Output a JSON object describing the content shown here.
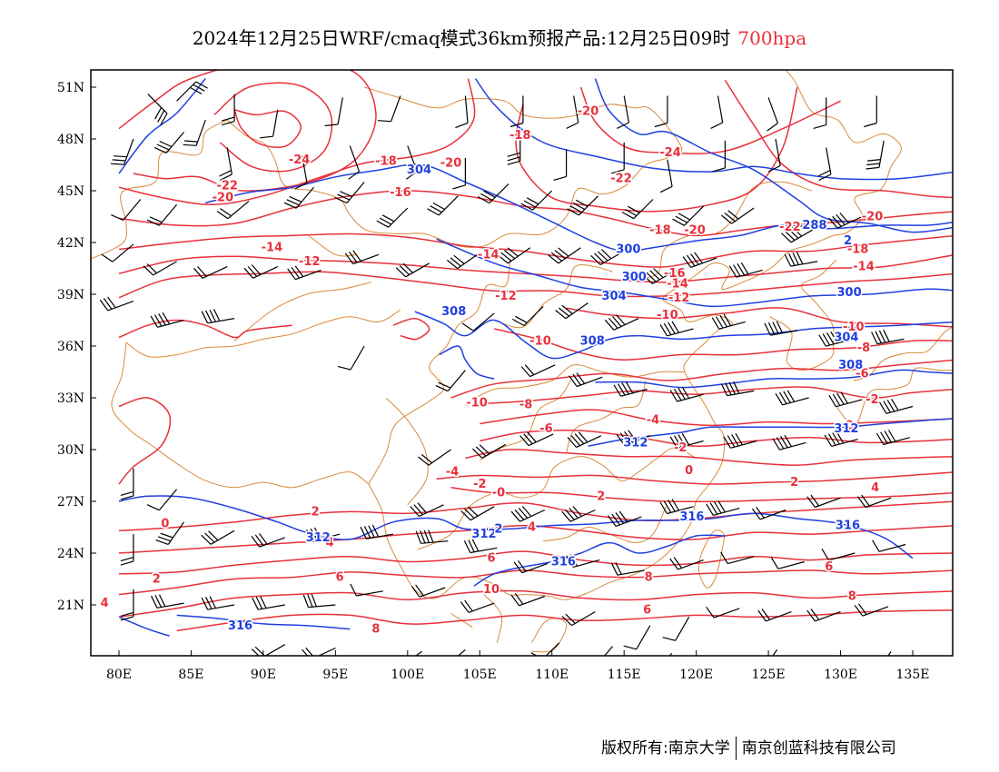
{
  "title": {
    "main": "2024年12月25日WRF/cmaq模式36km预报产品:12月25日09时",
    "level": "700hpa",
    "level_color": "#e8303a"
  },
  "axes": {
    "lon_labels": [
      "80E",
      "85E",
      "90E",
      "95E",
      "100E",
      "105E",
      "110E",
      "115E",
      "120E",
      "125E",
      "130E",
      "135E"
    ],
    "lat_labels": [
      "51N",
      "48N",
      "45N",
      "42N",
      "39N",
      "36N",
      "33N",
      "30N",
      "27N",
      "24N",
      "21N"
    ]
  },
  "colors": {
    "temperature": "#e8303a",
    "height": "#1f3fe0",
    "border": "#d98a3a",
    "wind": "#000000"
  },
  "temperature_labels": [
    {
      "text": "-24",
      "lon": 92.5,
      "lat": 46.8
    },
    {
      "text": "-22",
      "lon": 87.5,
      "lat": 45.3
    },
    {
      "text": "-20",
      "lon": 87.2,
      "lat": 44.6
    },
    {
      "text": "-18",
      "lon": 98.5,
      "lat": 46.7
    },
    {
      "text": "-20",
      "lon": 103,
      "lat": 46.6
    },
    {
      "text": "-16",
      "lon": 99.5,
      "lat": 44.9
    },
    {
      "text": "-18",
      "lon": 107.8,
      "lat": 48.2
    },
    {
      "text": "-20",
      "lon": 112.5,
      "lat": 49.6
    },
    {
      "text": "-24",
      "lon": 118.2,
      "lat": 47.2
    },
    {
      "text": "-22",
      "lon": 114.8,
      "lat": 45.7
    },
    {
      "text": "-18",
      "lon": 117.5,
      "lat": 42.7
    },
    {
      "text": "-20",
      "lon": 119.9,
      "lat": 42.7
    },
    {
      "text": "-22",
      "lon": 126.5,
      "lat": 42.9
    },
    {
      "text": "-20",
      "lon": 132.2,
      "lat": 43.5
    },
    {
      "text": "-18",
      "lon": 131.2,
      "lat": 41.6
    },
    {
      "text": "-14",
      "lon": 90.6,
      "lat": 41.7
    },
    {
      "text": "-12",
      "lon": 93.2,
      "lat": 40.9
    },
    {
      "text": "-14",
      "lon": 105.6,
      "lat": 41.3
    },
    {
      "text": "-16",
      "lon": 118.5,
      "lat": 40.2
    },
    {
      "text": "-14",
      "lon": 118.7,
      "lat": 39.6
    },
    {
      "text": "-12",
      "lon": 118.8,
      "lat": 38.8
    },
    {
      "text": "-12",
      "lon": 106.8,
      "lat": 38.9
    },
    {
      "text": "-14",
      "lon": 131.6,
      "lat": 40.6
    },
    {
      "text": "-10",
      "lon": 118,
      "lat": 37.8
    },
    {
      "text": "-10",
      "lon": 109.2,
      "lat": 36.3
    },
    {
      "text": "-10",
      "lon": 130.9,
      "lat": 37.1
    },
    {
      "text": "-8",
      "lon": 131.6,
      "lat": 35.9
    },
    {
      "text": "-6",
      "lon": 131.5,
      "lat": 34.4
    },
    {
      "text": "-2",
      "lon": 132.2,
      "lat": 32.9
    },
    {
      "text": "0",
      "lon": 130.6,
      "lat": 31.4
    },
    {
      "text": "-10",
      "lon": 104.8,
      "lat": 32.7
    },
    {
      "text": "-8",
      "lon": 108.2,
      "lat": 32.6
    },
    {
      "text": "-6",
      "lon": 109.6,
      "lat": 31.2
    },
    {
      "text": "-4",
      "lon": 117,
      "lat": 31.7
    },
    {
      "text": "-2",
      "lon": 118.9,
      "lat": 30.1
    },
    {
      "text": "0",
      "lon": 119.5,
      "lat": 28.8
    },
    {
      "text": "2",
      "lon": 126.8,
      "lat": 28.1
    },
    {
      "text": "4",
      "lon": 132.4,
      "lat": 27.8
    },
    {
      "text": "-4",
      "lon": 103.1,
      "lat": 28.7
    },
    {
      "text": "-2",
      "lon": 105,
      "lat": 28
    },
    {
      "text": "-0",
      "lon": 106.3,
      "lat": 27.5
    },
    {
      "text": "2",
      "lon": 113.4,
      "lat": 27.3
    },
    {
      "text": "2",
      "lon": 93.6,
      "lat": 26.4
    },
    {
      "text": "4",
      "lon": 94.6,
      "lat": 24.6
    },
    {
      "text": "4",
      "lon": 108.6,
      "lat": 25.5
    },
    {
      "text": "6",
      "lon": 105.8,
      "lat": 23.7
    },
    {
      "text": "6",
      "lon": 95.3,
      "lat": 22.6
    },
    {
      "text": "2",
      "lon": 82.6,
      "lat": 22.5
    },
    {
      "text": "4",
      "lon": 79,
      "lat": 21.1
    },
    {
      "text": "0",
      "lon": 83.2,
      "lat": 25.7
    },
    {
      "text": "8",
      "lon": 116.7,
      "lat": 22.6
    },
    {
      "text": "6",
      "lon": 129.2,
      "lat": 23.2
    },
    {
      "text": "8",
      "lon": 130.8,
      "lat": 21.5
    },
    {
      "text": "6",
      "lon": 116.6,
      "lat": 20.7
    },
    {
      "text": "10",
      "lon": 105.8,
      "lat": 21.9
    },
    {
      "text": "8",
      "lon": 97.8,
      "lat": 19.6
    }
  ],
  "height_labels": [
    {
      "text": "304",
      "lon": 100.8,
      "lat": 46.2
    },
    {
      "text": "288",
      "lon": 128.2,
      "lat": 43
    },
    {
      "text": "2",
      "lon": 130.5,
      "lat": 42.1
    },
    {
      "text": "300",
      "lon": 115.3,
      "lat": 41.6
    },
    {
      "text": "300",
      "lon": 115.7,
      "lat": 40
    },
    {
      "text": "304",
      "lon": 114.3,
      "lat": 38.9
    },
    {
      "text": "308",
      "lon": 103.2,
      "lat": 38
    },
    {
      "text": "308",
      "lon": 112.8,
      "lat": 36.3
    },
    {
      "text": "300",
      "lon": 130.6,
      "lat": 39.1
    },
    {
      "text": "304",
      "lon": 130.4,
      "lat": 36.5
    },
    {
      "text": "308",
      "lon": 130.7,
      "lat": 34.9
    },
    {
      "text": "312",
      "lon": 130.4,
      "lat": 31.2
    },
    {
      "text": "312",
      "lon": 115.8,
      "lat": 30.4
    },
    {
      "text": "312",
      "lon": 93.8,
      "lat": 24.9
    },
    {
      "text": "312",
      "lon": 105.3,
      "lat": 25.1
    },
    {
      "text": "316",
      "lon": 119.7,
      "lat": 26.1
    },
    {
      "text": "316",
      "lon": 130.5,
      "lat": 25.6
    },
    {
      "text": "316",
      "lon": 110.8,
      "lat": 23.5
    },
    {
      "text": "316",
      "lon": 88.4,
      "lat": 19.8
    },
    {
      "text": "2",
      "lon": 106.3,
      "lat": 25.4
    }
  ],
  "footer": {
    "left": "版权所有:南京大学",
    "right": "南京创蓝科技有限公司"
  }
}
